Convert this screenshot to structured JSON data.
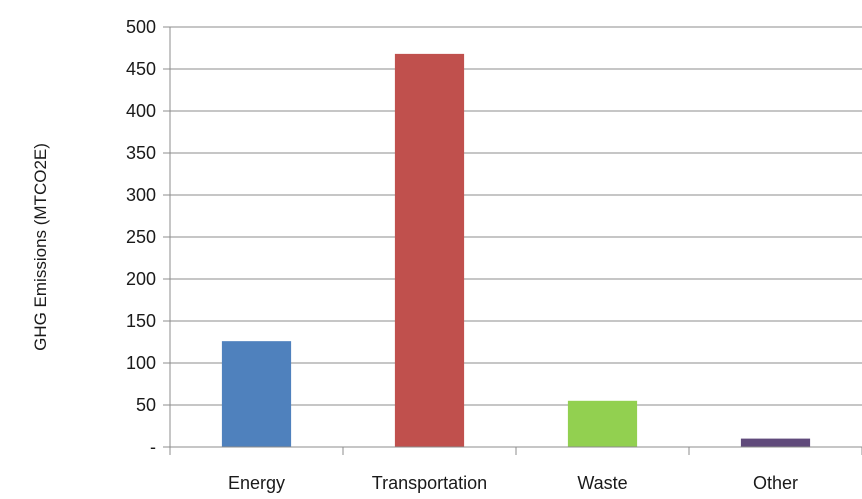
{
  "chart_data": {
    "type": "bar",
    "title": "",
    "xlabel": "",
    "ylabel": "GHG Emissions (MTCO2E)",
    "categories": [
      "Energy",
      "Transportation",
      "Waste",
      "Other"
    ],
    "values": [
      126,
      468,
      55,
      10
    ],
    "colors": [
      "#4f81bd",
      "#c0504d",
      "#92d050",
      "#604a7b"
    ],
    "ylim": [
      0,
      500
    ],
    "yticks": [
      0,
      50,
      100,
      150,
      200,
      250,
      300,
      350,
      400,
      450,
      500
    ],
    "ytick_labels": [
      "-",
      "50",
      "100",
      "150",
      "200",
      "250",
      "300",
      "350",
      "400",
      "450",
      "500"
    ],
    "grid": true,
    "legend": "none"
  }
}
